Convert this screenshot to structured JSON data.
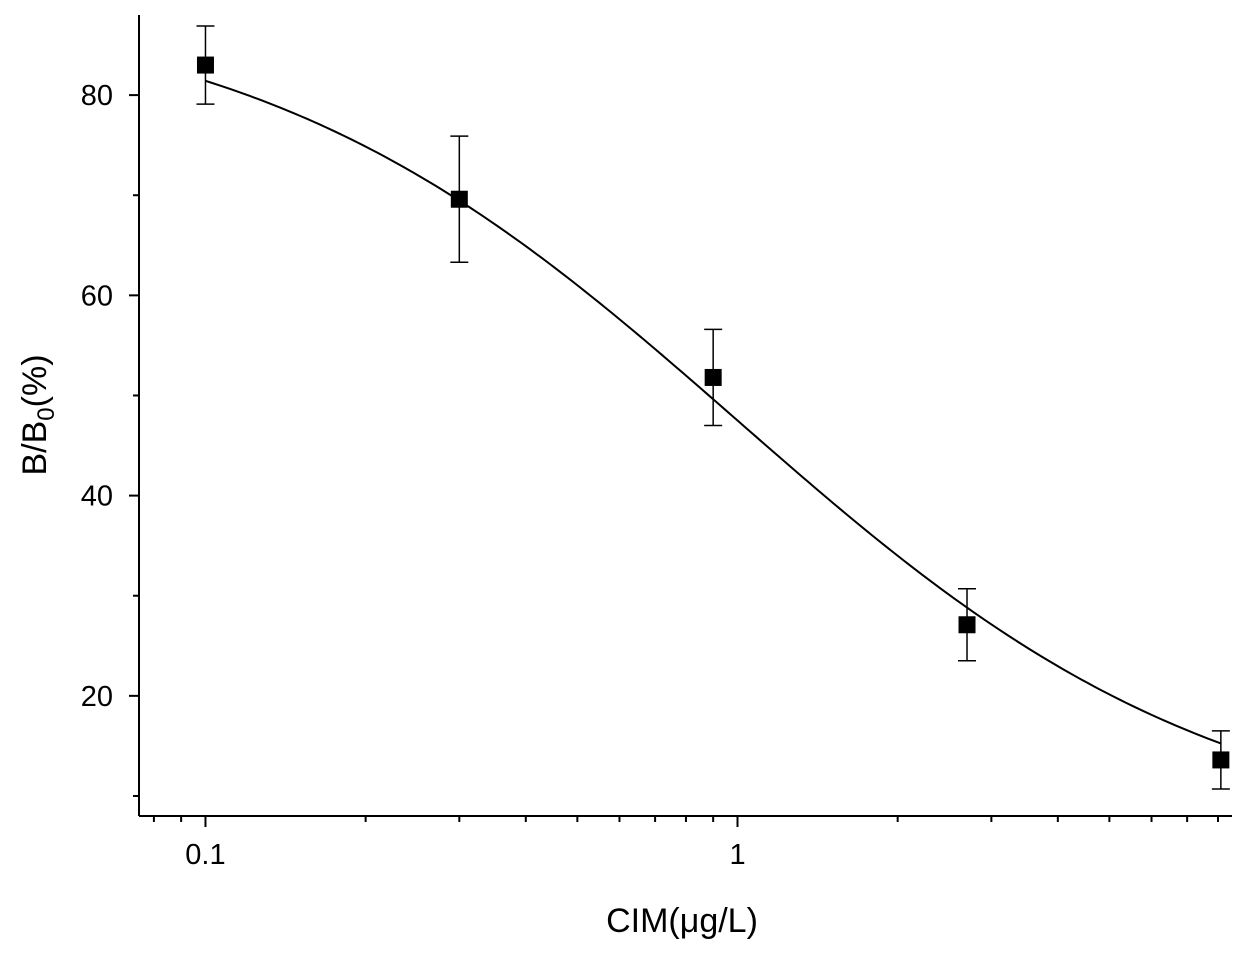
{
  "chart_data": {
    "type": "scatter",
    "title": "",
    "xlabel": "CIM(μg/L)",
    "ylabel": {
      "main": "B/B",
      "sub": "0",
      "suffix": "(%)"
    },
    "x_scale": "log",
    "xlim": [
      0.075,
      8.5
    ],
    "ylim": [
      8,
      88
    ],
    "x_ticks": [
      {
        "value": 0.1,
        "label": "0.1"
      },
      {
        "value": 1,
        "label": "1"
      }
    ],
    "y_ticks": [
      {
        "value": 20,
        "label": "20"
      },
      {
        "value": 40,
        "label": "40"
      },
      {
        "value": 60,
        "label": "60"
      },
      {
        "value": 80,
        "label": "80"
      }
    ],
    "y_minor_ticks": [
      10,
      30,
      50,
      70
    ],
    "grid": false,
    "legend": "none",
    "series": [
      {
        "x": [
          0.1,
          0.3,
          0.9,
          2.7,
          8.1
        ],
        "y": [
          83.0,
          69.6,
          51.8,
          27.1,
          13.6
        ],
        "error": [
          3.9,
          6.3,
          4.8,
          3.6,
          2.9
        ]
      }
    ],
    "fit_curve": {
      "model": "four-parameter logistic",
      "top": 90,
      "bottom": 5,
      "x0": 1.0,
      "hill": 0.95
    }
  }
}
